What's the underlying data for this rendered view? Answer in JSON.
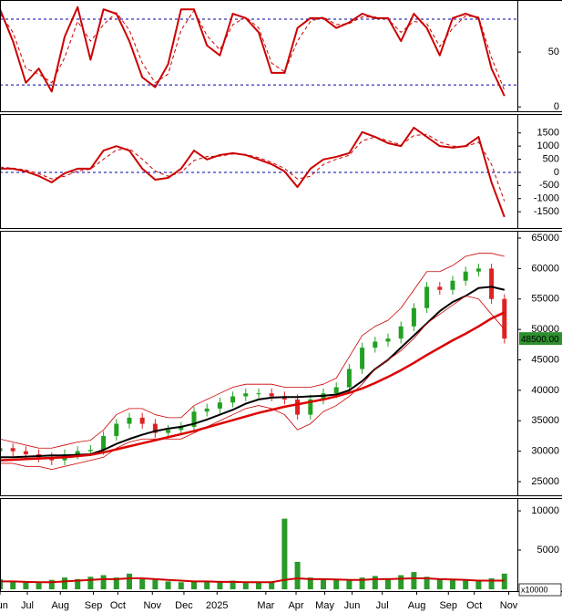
{
  "chart_data": [
    {
      "type": "line",
      "x": [
        0,
        9,
        18,
        27,
        36,
        45,
        54,
        63,
        72,
        81,
        90,
        99,
        108,
        117,
        126,
        135,
        144,
        153,
        162,
        171,
        180,
        189,
        198,
        207,
        216,
        225,
        234,
        243,
        252,
        261,
        270,
        279,
        288,
        297,
        306,
        315,
        324,
        333,
        342,
        351
      ],
      "xlim": [
        0,
        360
      ],
      "ylim": [
        -4,
        97.5
      ],
      "yticks": [
        0,
        50
      ],
      "reference_lines": [
        20,
        80
      ],
      "reference_color": "#0000aa",
      "series": [
        {
          "color": "#cc0000",
          "width": 2,
          "values": [
            89,
            60,
            22,
            35,
            14,
            64,
            91,
            43,
            89,
            85,
            60,
            27,
            18,
            39,
            89,
            89,
            56,
            47,
            85,
            81,
            68,
            31,
            31,
            72,
            81,
            81,
            72,
            77,
            85,
            81,
            81,
            60,
            85,
            72,
            47,
            81,
            85,
            81,
            35,
            10
          ]
        },
        {
          "color": "#cc0000",
          "width": 1,
          "dashed": true,
          "values": [
            85,
            68,
            35,
            30,
            22,
            45,
            78,
            60,
            75,
            86,
            70,
            40,
            22,
            30,
            70,
            88,
            65,
            52,
            75,
            82,
            72,
            40,
            32,
            60,
            78,
            82,
            75,
            76,
            82,
            82,
            80,
            68,
            78,
            76,
            55,
            72,
            83,
            82,
            45,
            15
          ]
        }
      ]
    },
    {
      "type": "line",
      "x": [
        0,
        9,
        18,
        27,
        36,
        45,
        54,
        63,
        72,
        81,
        90,
        99,
        108,
        117,
        126,
        135,
        144,
        153,
        162,
        171,
        180,
        189,
        198,
        207,
        216,
        225,
        234,
        243,
        252,
        261,
        270,
        279,
        288,
        297,
        306,
        315,
        324,
        333,
        342,
        351
      ],
      "xlim": [
        0,
        360
      ],
      "ylim": [
        -2120,
        2220
      ],
      "yticks": [
        -1500,
        -1000,
        -500,
        0,
        500,
        1000,
        1500
      ],
      "reference_lines": [
        0
      ],
      "reference_color": "#0000aa",
      "series": [
        {
          "color": "#cc0000",
          "width": 2,
          "values": [
            140,
            140,
            35,
            -140,
            -380,
            -35,
            140,
            140,
            830,
            1000,
            830,
            140,
            -280,
            -210,
            140,
            830,
            490,
            660,
            730,
            660,
            490,
            310,
            35,
            -560,
            140,
            490,
            590,
            730,
            1530,
            1350,
            1110,
            1000,
            1700,
            1350,
            1000,
            940,
            1000,
            1350,
            -380,
            -1700
          ]
        },
        {
          "color": "#cc0000",
          "width": 1,
          "dashed": true,
          "values": [
            200,
            160,
            90,
            -50,
            -250,
            -150,
            50,
            120,
            500,
            850,
            900,
            500,
            50,
            -150,
            0,
            450,
            600,
            620,
            700,
            680,
            560,
            380,
            150,
            -250,
            -150,
            300,
            500,
            650,
            1200,
            1350,
            1200,
            1050,
            1400,
            1450,
            1150,
            1000,
            980,
            1150,
            300,
            -1100
          ]
        }
      ]
    },
    {
      "type": "candlestick",
      "x": [
        0,
        9,
        18,
        27,
        36,
        45,
        54,
        63,
        72,
        81,
        90,
        99,
        108,
        117,
        126,
        135,
        144,
        153,
        162,
        171,
        180,
        189,
        198,
        207,
        216,
        225,
        234,
        243,
        252,
        261,
        270,
        279,
        288,
        297,
        306,
        315,
        324,
        333,
        342,
        351
      ],
      "xlim": [
        0,
        360
      ],
      "ylim": [
        22750,
        66200
      ],
      "yticks": [
        25000,
        30000,
        35000,
        40000,
        45000,
        50000,
        55000,
        60000,
        65000
      ],
      "up_color": "#22a022",
      "down_color": "#dd2222",
      "open": [
        30000,
        30500,
        30000,
        29500,
        29000,
        28500,
        29500,
        30000,
        30200,
        32500,
        34500,
        35500,
        34500,
        33000,
        33500,
        34000,
        36500,
        37000,
        38000,
        39000,
        39500,
        39500,
        39000,
        38500,
        36000,
        38500,
        39500,
        40500,
        43500,
        47000,
        48000,
        48500,
        50500,
        53500,
        57000,
        56500,
        58000,
        59500,
        60000,
        55000
      ],
      "high": [
        31300,
        31300,
        30800,
        30300,
        29800,
        30300,
        30800,
        31000,
        33300,
        35300,
        36300,
        36300,
        35300,
        34300,
        34800,
        37300,
        37800,
        38800,
        39800,
        40300,
        40300,
        40300,
        39800,
        39300,
        39300,
        40300,
        41300,
        44300,
        47800,
        48800,
        49300,
        51300,
        54300,
        57800,
        57800,
        58800,
        60300,
        60800,
        60800,
        55800
      ],
      "low": [
        29200,
        29200,
        28700,
        28200,
        27700,
        27700,
        28700,
        29200,
        29400,
        31700,
        33700,
        33700,
        32200,
        32200,
        32700,
        33200,
        35700,
        36200,
        37200,
        38200,
        38700,
        38200,
        37700,
        35200,
        35200,
        37700,
        38700,
        39700,
        42700,
        46200,
        47200,
        47700,
        49700,
        52700,
        55700,
        55700,
        57200,
        58700,
        54200,
        47700
      ],
      "close": [
        30500,
        30000,
        29500,
        29000,
        28500,
        29500,
        30000,
        30200,
        32500,
        34500,
        35500,
        34500,
        33000,
        33500,
        34000,
        36500,
        37000,
        38000,
        39000,
        39500,
        39500,
        39000,
        38500,
        36000,
        38500,
        39500,
        40500,
        43500,
        47000,
        48000,
        48500,
        50500,
        53500,
        57000,
        56500,
        58000,
        59500,
        60000,
        55000,
        48500
      ],
      "series": [
        {
          "color": "#000000",
          "width": 2,
          "values": [
            29000,
            29000,
            29100,
            29200,
            29300,
            29300,
            29400,
            29500,
            30200,
            31200,
            32000,
            32700,
            33300,
            33700,
            34000,
            34500,
            35200,
            36000,
            36800,
            37800,
            38500,
            38800,
            38900,
            38900,
            39000,
            39100,
            39300,
            40000,
            41500,
            43500,
            45000,
            47000,
            49000,
            51000,
            53000,
            54500,
            55500,
            56800,
            57000,
            56500
          ]
        },
        {
          "color": "#dd0000",
          "width": 2.5,
          "values": [
            28500,
            28600,
            28700,
            28800,
            28900,
            29000,
            29200,
            29400,
            29800,
            30300,
            30800,
            31300,
            31800,
            32300,
            32800,
            33300,
            33900,
            34500,
            35100,
            35700,
            36300,
            36800,
            37300,
            37700,
            38100,
            38500,
            39000,
            39600,
            40300,
            41200,
            42200,
            43300,
            44500,
            45800,
            47000,
            48200,
            49300,
            50500,
            51800,
            52800
          ]
        },
        {
          "color": "#cc0000",
          "width": 0.8,
          "values": [
            32000,
            31500,
            31000,
            30500,
            30500,
            31000,
            31500,
            31800,
            33500,
            36000,
            37000,
            37000,
            36000,
            35500,
            35500,
            37500,
            38500,
            39500,
            40500,
            41000,
            41000,
            41000,
            40500,
            40500,
            40500,
            41000,
            42000,
            45500,
            49000,
            50500,
            51500,
            53500,
            56500,
            59500,
            59500,
            60500,
            62000,
            62500,
            62500,
            62000
          ]
        },
        {
          "color": "#cc0000",
          "width": 0.8,
          "values": [
            28000,
            28000,
            27500,
            27500,
            27000,
            27500,
            28000,
            28500,
            29000,
            30500,
            31500,
            32000,
            32000,
            32000,
            32000,
            33000,
            34000,
            35000,
            36000,
            37000,
            37500,
            37000,
            36000,
            33500,
            34500,
            36500,
            37500,
            39000,
            41000,
            43500,
            45000,
            46500,
            48500,
            51000,
            52500,
            54000,
            55500,
            55000,
            52500,
            50000
          ]
        }
      ],
      "last_price": {
        "value": 48500,
        "label": "48500.00"
      },
      "last_price_color": "#2f8f2f"
    },
    {
      "type": "bar",
      "x": [
        0,
        9,
        18,
        27,
        36,
        45,
        54,
        63,
        72,
        81,
        90,
        99,
        108,
        117,
        126,
        135,
        144,
        153,
        162,
        171,
        180,
        189,
        198,
        207,
        216,
        225,
        234,
        243,
        252,
        261,
        270,
        279,
        288,
        297,
        306,
        315,
        324,
        333,
        342,
        351
      ],
      "xlim": [
        0,
        360
      ],
      "ylim": [
        -230,
        11630
      ],
      "yticks": [
        5000,
        10000
      ],
      "color": "#2a9a2a",
      "values": [
        1300,
        1000,
        900,
        800,
        1200,
        1500,
        1300,
        1600,
        1800,
        1500,
        2000,
        1400,
        1200,
        1000,
        900,
        1100,
        1000,
        900,
        1100,
        800,
        900,
        1000,
        9000,
        3500,
        1500,
        1400,
        1300,
        1200,
        1500,
        1700,
        1300,
        1800,
        2200,
        1600,
        1400,
        1200,
        1300,
        1100,
        1400,
        2000
      ],
      "series": [
        {
          "color": "#cc0000",
          "width": 2,
          "values": [
            1000,
            1000,
            950,
            900,
            900,
            1000,
            1100,
            1200,
            1300,
            1300,
            1400,
            1400,
            1300,
            1200,
            1100,
            1000,
            1000,
            950,
            950,
            900,
            900,
            900,
            1200,
            1400,
            1300,
            1300,
            1250,
            1200,
            1200,
            1300,
            1300,
            1350,
            1400,
            1400,
            1300,
            1250,
            1200,
            1100,
            1100,
            1100
          ]
        }
      ],
      "unit_label": "x10000",
      "xticks": [
        {
          "value": 0,
          "label": "Jun"
        },
        {
          "value": 19,
          "label": "Jul"
        },
        {
          "value": 42,
          "label": "Aug"
        },
        {
          "value": 65,
          "label": "Sep"
        },
        {
          "value": 82,
          "label": "Oct"
        },
        {
          "value": 106,
          "label": "Nov"
        },
        {
          "value": 128,
          "label": "Dec"
        },
        {
          "value": 151,
          "label": "2025"
        },
        {
          "value": 185,
          "label": "Mar"
        },
        {
          "value": 206,
          "label": "Apr"
        },
        {
          "value": 226,
          "label": "May"
        },
        {
          "value": 245,
          "label": "Jun"
        },
        {
          "value": 266,
          "label": "Jul"
        },
        {
          "value": 290,
          "label": "Aug"
        },
        {
          "value": 312,
          "label": "Sep"
        },
        {
          "value": 330,
          "label": "Oct"
        },
        {
          "value": 354,
          "label": "Nov"
        }
      ]
    }
  ]
}
